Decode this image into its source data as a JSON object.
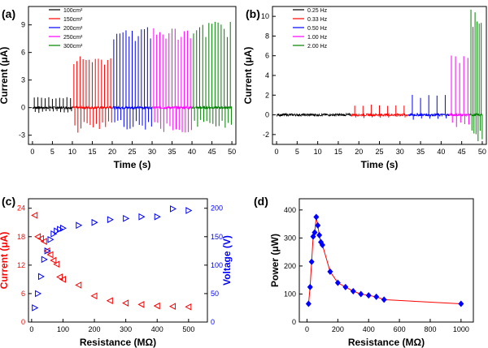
{
  "chart_data": [
    {
      "type": "line",
      "panel_label": "(a)",
      "xlabel": "Time (s)",
      "ylabel": "Current (μA)",
      "xlim": [
        -1,
        51
      ],
      "ylim": [
        -4,
        11
      ],
      "xticks": [
        0,
        5,
        10,
        15,
        20,
        25,
        30,
        35,
        40,
        45,
        50
      ],
      "yticks": [
        -3,
        0,
        3,
        6,
        9
      ],
      "legend_position": "top-left",
      "series": [
        {
          "name": "100cm²",
          "color": "#000000",
          "t_start": 0,
          "t_end": 10,
          "peaks": 11,
          "pos_amp": 1.1,
          "neg_amp": 0.6
        },
        {
          "name": "150cm²",
          "color": "#ff0000",
          "t_start": 10,
          "t_end": 20,
          "peaks": 13,
          "pos_amp": 5.5,
          "neg_amp": 2.5
        },
        {
          "name": "200cm²",
          "color": "#0000ff",
          "t_start": 20,
          "t_end": 30,
          "peaks": 13,
          "pos_amp": 8.5,
          "neg_amp": 2.2
        },
        {
          "name": "250cm²",
          "color": "#ff00ff",
          "t_start": 30,
          "t_end": 40,
          "peaks": 13,
          "pos_amp": 8.5,
          "neg_amp": 2.5
        },
        {
          "name": "300cm²",
          "color": "#008000",
          "t_start": 40,
          "t_end": 50,
          "peaks": 13,
          "pos_amp": 9.0,
          "neg_amp": 2.0
        }
      ]
    },
    {
      "type": "line",
      "panel_label": "(b)",
      "xlabel": "Time (s)",
      "ylabel": "Current (μA)",
      "xlim": [
        -1,
        51
      ],
      "ylim": [
        -3,
        11
      ],
      "xticks": [
        0,
        5,
        10,
        15,
        20,
        25,
        30,
        35,
        40,
        45,
        50
      ],
      "yticks": [
        -2,
        0,
        2,
        4,
        6,
        8,
        10
      ],
      "legend_position": "top-left",
      "series": [
        {
          "name": "0.25 Hz",
          "color": "#000000",
          "t_start": 0,
          "t_end": 18,
          "peaks": 0,
          "pos_amp": 0.1,
          "neg_amp": 0.1
        },
        {
          "name": "0.33 Hz",
          "color": "#ff0000",
          "t_start": 18,
          "t_end": 32,
          "peaks": 7,
          "pos_amp": 1.0,
          "neg_amp": 0.3
        },
        {
          "name": "0.50 Hz",
          "color": "#0000ff",
          "t_start": 32,
          "t_end": 42,
          "peaks": 5,
          "pos_amp": 2.0,
          "neg_amp": 0.5
        },
        {
          "name": "1.00 Hz",
          "color": "#ff00ff",
          "t_start": 42,
          "t_end": 47,
          "peaks": 5,
          "pos_amp": 5.8,
          "neg_amp": 1.2
        },
        {
          "name": "2.00 Hz",
          "color": "#008000",
          "t_start": 47,
          "t_end": 50,
          "peaks": 6,
          "pos_amp": 10.5,
          "neg_amp": 2.5
        }
      ]
    },
    {
      "type": "scatter",
      "panel_label": "(c)",
      "xlabel": "Resistance (MΩ)",
      "ylabel": "Current (μA)",
      "y2label": "Voltage (V)",
      "xlim": [
        -10,
        560
      ],
      "ylim": [
        0,
        26
      ],
      "y2lim": [
        0,
        216.7
      ],
      "xticks": [
        0,
        100,
        200,
        300,
        400,
        500
      ],
      "yticks": [
        0,
        6,
        12,
        18,
        24
      ],
      "y2ticks": [
        0,
        50,
        100,
        150,
        200
      ],
      "series": [
        {
          "name": "Current",
          "axis": "left",
          "color": "#ff0000",
          "x": [
            10,
            20,
            30,
            40,
            50,
            60,
            70,
            80,
            90,
            100,
            150,
            200,
            250,
            300,
            350,
            400,
            450,
            500
          ],
          "y": [
            22.5,
            18.0,
            17.6,
            17.0,
            15.0,
            14.2,
            13.0,
            12.2,
            9.5,
            9.0,
            7.8,
            5.5,
            4.5,
            4.0,
            3.7,
            3.4,
            3.3,
            3.2
          ]
        },
        {
          "name": "Voltage",
          "axis": "right",
          "color": "#0000ff",
          "x": [
            10,
            20,
            30,
            40,
            50,
            60,
            70,
            80,
            90,
            100,
            150,
            200,
            250,
            300,
            350,
            400,
            450,
            500
          ],
          "y": [
            25,
            50,
            80,
            110,
            125,
            145,
            155,
            160,
            163,
            165,
            170,
            175,
            180,
            182,
            185,
            185,
            199,
            196
          ]
        }
      ]
    },
    {
      "type": "line",
      "panel_label": "(d)",
      "xlabel": "Resistance (MΩ)",
      "ylabel": "Power (μW)",
      "xlim": [
        -50,
        1080
      ],
      "ylim": [
        0,
        440
      ],
      "xticks": [
        0,
        200,
        400,
        600,
        800,
        1000
      ],
      "yticks": [
        0,
        100,
        200,
        300,
        400
      ],
      "series": [
        {
          "name": "Power",
          "color": "#ff0000",
          "marker_color": "#0000ff",
          "x": [
            10,
            20,
            30,
            40,
            50,
            60,
            70,
            80,
            90,
            100,
            150,
            200,
            250,
            300,
            350,
            400,
            450,
            500,
            1000
          ],
          "y": [
            65,
            125,
            215,
            305,
            320,
            375,
            345,
            310,
            285,
            275,
            180,
            140,
            125,
            110,
            100,
            95,
            90,
            80,
            65
          ]
        }
      ]
    }
  ]
}
